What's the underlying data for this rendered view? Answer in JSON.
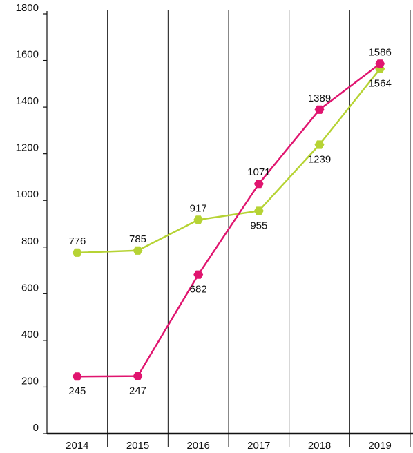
{
  "chart_data": {
    "type": "line",
    "title": "",
    "xlabel": "",
    "ylabel": "",
    "categories": [
      "2014",
      "2015",
      "2016",
      "2017",
      "2018",
      "2019"
    ],
    "ylim": [
      0,
      1800
    ],
    "yticks": [
      0,
      200,
      400,
      600,
      800,
      1000,
      1200,
      1400,
      1600,
      1800
    ],
    "grid": "vertical",
    "legend": "none",
    "series": [
      {
        "values": [
          245,
          247,
          682,
          1071,
          1389,
          1586
        ],
        "color": "#e0156f",
        "label_position": [
          "below",
          "below",
          "below",
          "above",
          "above",
          "above"
        ]
      },
      {
        "values": [
          776,
          785,
          917,
          955,
          1239,
          1564
        ],
        "color": "#b6d334",
        "label_position": [
          "above",
          "above",
          "above",
          "below",
          "below",
          "below"
        ]
      }
    ]
  }
}
